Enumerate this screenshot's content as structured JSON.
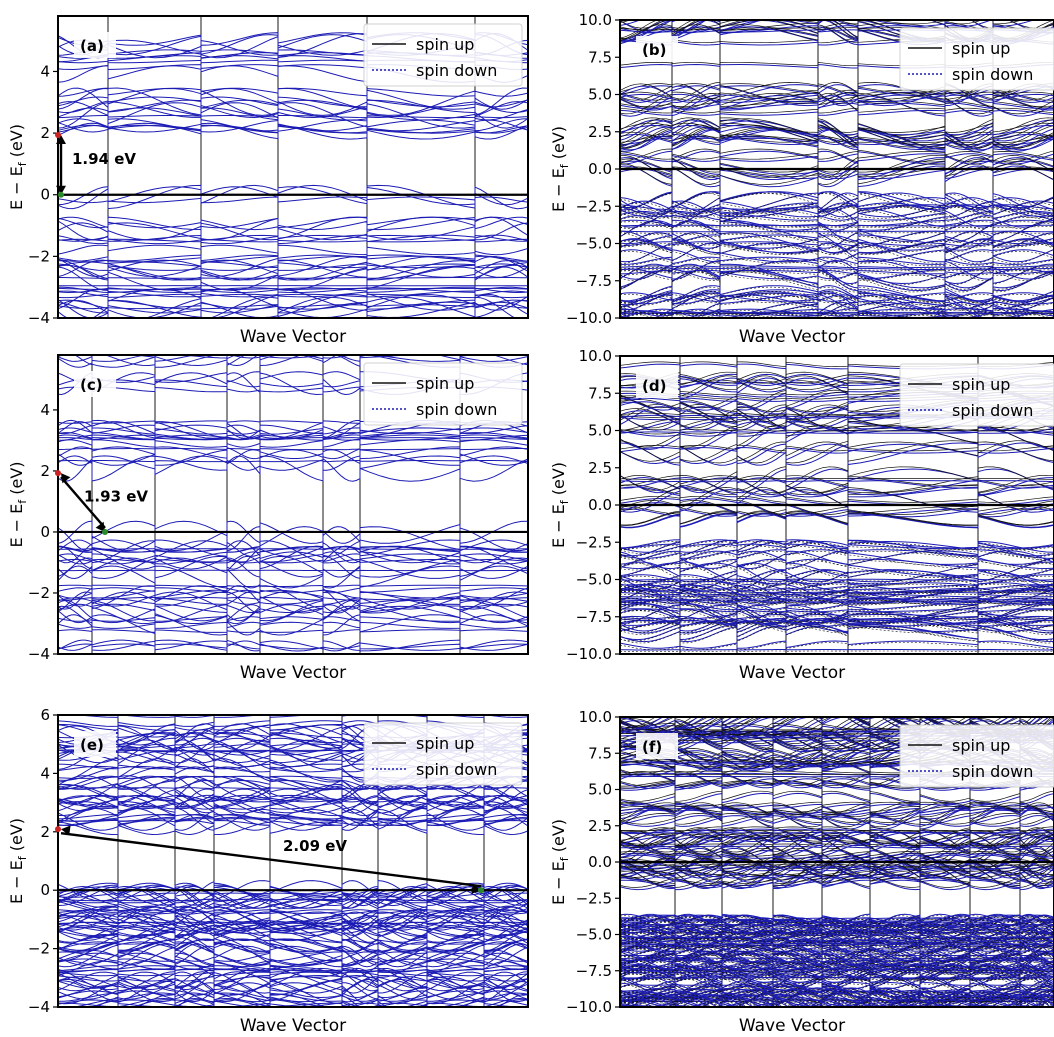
{
  "figure": {
    "common": {
      "ylabel": "E  −  E",
      "ylabel_sub": "f",
      "ylabel_unit": " (eV)",
      "xlabel": "Wave Vector",
      "legend": [
        "spin up",
        "spin down"
      ]
    },
    "colors": {
      "spin_down": "#1c1cb4",
      "spin_up": "#111111",
      "frame": "#000000",
      "divider": "#000000",
      "marker_cbm": "#cc2222",
      "marker_vbm": "#2a8a2a"
    }
  },
  "chart_data": [
    {
      "panel": "(a)",
      "type": "line",
      "xlabel": "Wave Vector",
      "ylabel": "E − Ef (eV)",
      "ylim": [
        -4,
        5.8
      ],
      "yticks": [
        "−4",
        "−2",
        "0",
        "2",
        "4"
      ],
      "ytick_values": [
        -4,
        -2,
        0,
        2,
        4
      ],
      "legend": [
        "spin up",
        "spin down"
      ],
      "legend_position": "top-right",
      "kpath_segments": 8,
      "band_gap": {
        "label": "1.94 eV",
        "value_eV": 1.94,
        "from": [
          0,
          1.94
        ],
        "to": [
          0,
          0
        ]
      },
      "series": [
        {
          "name": "spin up",
          "style": "solid",
          "color": "#111111"
        },
        {
          "name": "spin down",
          "style": "dotted",
          "color": "#1c1cb4"
        }
      ],
      "bands": {
        "conduction_range": [
          1.94,
          5.8
        ],
        "valence_range": [
          -4,
          0
        ]
      }
    },
    {
      "panel": "(b)",
      "type": "line",
      "xlabel": "Wave Vector",
      "ylabel": "E − Ef (eV)",
      "ylim": [
        -10,
        10
      ],
      "yticks": [
        "−10.0",
        "−7.5",
        "−5.0",
        "−2.5",
        "0.0",
        "2.5",
        "5.0",
        "7.5",
        "10.0"
      ],
      "ytick_values": [
        -10,
        -7.5,
        -5,
        -2.5,
        0,
        2.5,
        5,
        7.5,
        10
      ],
      "legend": [
        "spin up",
        "spin down"
      ],
      "legend_position": "top-right",
      "kpath_segments": 8,
      "series": [
        {
          "name": "spin up",
          "style": "solid",
          "color": "#111111"
        },
        {
          "name": "spin down",
          "style": "dotted",
          "color": "#1c1cb4"
        }
      ],
      "bands": {
        "conduction_range": [
          -0.8,
          10
        ],
        "valence_range": [
          -10,
          -2
        ]
      }
    },
    {
      "panel": "(c)",
      "type": "line",
      "xlabel": "Wave Vector",
      "ylabel": "E − Ef (eV)",
      "ylim": [
        -4,
        5.8
      ],
      "yticks": [
        "−4",
        "−2",
        "0",
        "2",
        "4"
      ],
      "ytick_values": [
        -4,
        -2,
        0,
        2,
        4
      ],
      "legend": [
        "spin up",
        "spin down"
      ],
      "legend_position": "top-right",
      "kpath_segments": 8,
      "band_gap": {
        "label": "1.93 eV",
        "value_eV": 1.93,
        "from": [
          0,
          1.93
        ],
        "to": [
          0.1,
          0
        ]
      },
      "series": [
        {
          "name": "spin up",
          "style": "solid",
          "color": "#111111"
        },
        {
          "name": "spin down",
          "style": "dotted",
          "color": "#1c1cb4"
        }
      ],
      "bands": {
        "conduction_range": [
          1.93,
          5.8
        ],
        "valence_range": [
          -4,
          0
        ]
      }
    },
    {
      "panel": "(d)",
      "type": "line",
      "xlabel": "Wave Vector",
      "ylabel": "E − Ef (eV)",
      "ylim": [
        -10,
        10
      ],
      "yticks": [
        "−10.0",
        "−7.5",
        "−5.0",
        "−2.5",
        "0.0",
        "2.5",
        "5.0",
        "7.5",
        "10.0"
      ],
      "ytick_values": [
        -10,
        -7.5,
        -5,
        -2.5,
        0,
        2.5,
        5,
        7.5,
        10
      ],
      "legend": [
        "spin up",
        "spin down"
      ],
      "legend_position": "top-right",
      "kpath_segments": 6,
      "series": [
        {
          "name": "spin up",
          "style": "solid",
          "color": "#111111"
        },
        {
          "name": "spin down",
          "style": "dotted",
          "color": "#1c1cb4"
        }
      ],
      "bands": {
        "conduction_range": [
          -1.2,
          10
        ],
        "valence_range": [
          -10,
          -2.5
        ]
      }
    },
    {
      "panel": "(e)",
      "type": "line",
      "xlabel": "Wave Vector",
      "ylabel": "E − Ef (eV)",
      "ylim": [
        -4,
        6
      ],
      "yticks": [
        "−4",
        "−2",
        "0",
        "2",
        "4",
        "6"
      ],
      "ytick_values": [
        -4,
        -2,
        0,
        2,
        4,
        6
      ],
      "legend": [
        "spin up",
        "spin down"
      ],
      "legend_position": "top-right",
      "kpath_segments": 8,
      "band_gap": {
        "label": "2.09 eV",
        "value_eV": 2.09,
        "from": [
          0,
          2.09
        ],
        "to": [
          0.9,
          0
        ]
      },
      "series": [
        {
          "name": "spin up",
          "style": "solid",
          "color": "#111111"
        },
        {
          "name": "spin down",
          "style": "dotted",
          "color": "#1c1cb4"
        }
      ],
      "bands": {
        "conduction_range": [
          2.09,
          6
        ],
        "valence_range": [
          -4,
          0
        ]
      }
    },
    {
      "panel": "(f)",
      "type": "line",
      "xlabel": "Wave Vector",
      "ylabel": "E − Ef (eV)",
      "ylim": [
        -10,
        10
      ],
      "yticks": [
        "−10.0",
        "−7.5",
        "−5.0",
        "−2.5",
        "0.0",
        "2.5",
        "5.0",
        "7.5",
        "10.0"
      ],
      "ytick_values": [
        -10,
        -7.5,
        -5,
        -2.5,
        0,
        2.5,
        5,
        7.5,
        10
      ],
      "legend": [
        "spin up",
        "spin down"
      ],
      "legend_position": "top-right",
      "kpath_segments": 8,
      "series": [
        {
          "name": "spin up",
          "style": "solid",
          "color": "#111111"
        },
        {
          "name": "spin down",
          "style": "dotted",
          "color": "#1c1cb4"
        }
      ],
      "bands": {
        "conduction_range": [
          -1.5,
          10
        ],
        "valence_range": [
          -10,
          -3.6
        ]
      }
    }
  ]
}
